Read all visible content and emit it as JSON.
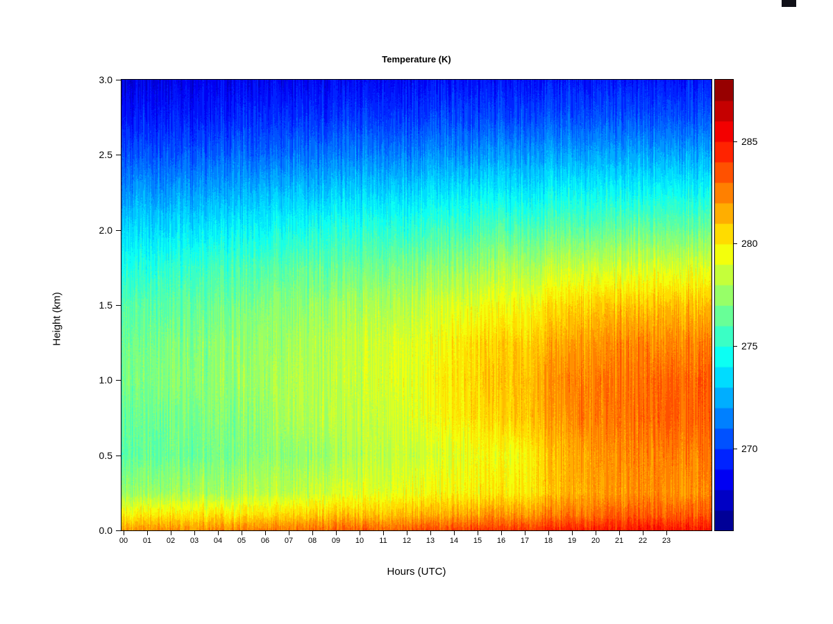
{
  "window": {
    "artifact_color": "#101018"
  },
  "chart_data": {
    "type": "heatmap",
    "title": "Temperature (K)",
    "xlabel": "Hours (UTC)",
    "ylabel": "Height (km)",
    "xlim": [
      0,
      24
    ],
    "ylim": [
      0,
      3
    ],
    "grid": false,
    "legend_position": "colorbar-right",
    "x_tick_labels": [
      "00",
      "01",
      "02",
      "03",
      "04",
      "05",
      "06",
      "07",
      "08",
      "09",
      "10",
      "11",
      "12",
      "13",
      "14",
      "15",
      "16",
      "17",
      "18",
      "19",
      "20",
      "21",
      "22",
      "23"
    ],
    "y_tick_values": [
      0.0,
      0.5,
      1.0,
      1.5,
      2.0,
      2.5,
      3.0
    ],
    "y_tick_labels": [
      "0.0",
      "0.5",
      "1.0",
      "1.5",
      "2.0",
      "2.5",
      "3.0"
    ],
    "heights_km": [
      0.0,
      0.1,
      0.25,
      0.5,
      0.75,
      1.0,
      1.25,
      1.5,
      1.75,
      2.0,
      2.25,
      2.5,
      2.75,
      3.0
    ],
    "hours_utc": [
      0,
      1,
      2,
      3,
      4,
      5,
      6,
      7,
      8,
      9,
      10,
      11,
      12,
      13,
      14,
      15,
      16,
      17,
      18,
      19,
      20,
      21,
      22,
      23
    ],
    "hour_profiles_K": [
      [
        282.0,
        280.0,
        277.6,
        276.4,
        276.5,
        276.8,
        276.5,
        276.0,
        275.0,
        273.5,
        272.0,
        270.5,
        269.2,
        268.2
      ],
      [
        282.0,
        280.0,
        277.5,
        276.3,
        276.4,
        276.8,
        276.5,
        276.0,
        275.0,
        273.5,
        272.0,
        270.5,
        269.2,
        268.2
      ],
      [
        282.2,
        280.0,
        277.6,
        276.4,
        276.6,
        277.0,
        276.8,
        276.2,
        275.2,
        273.6,
        272.0,
        270.5,
        269.2,
        268.2
      ],
      [
        282.2,
        280.2,
        277.8,
        276.6,
        276.8,
        277.2,
        277.0,
        276.4,
        275.4,
        273.8,
        272.2,
        270.6,
        269.3,
        268.3
      ],
      [
        282.4,
        280.2,
        277.8,
        276.8,
        277.0,
        277.4,
        277.2,
        276.6,
        275.6,
        274.0,
        272.4,
        270.8,
        269.4,
        268.4
      ],
      [
        282.4,
        280.4,
        278.0,
        277.0,
        277.2,
        277.6,
        277.4,
        276.8,
        275.8,
        274.2,
        272.6,
        271.0,
        269.5,
        268.5
      ],
      [
        282.6,
        280.4,
        278.2,
        277.2,
        277.5,
        277.8,
        277.6,
        277.0,
        276.0,
        274.4,
        272.8,
        271.0,
        269.6,
        268.5
      ],
      [
        282.8,
        280.6,
        278.4,
        277.4,
        277.8,
        278.0,
        277.8,
        277.2,
        276.2,
        274.6,
        273.0,
        271.2,
        269.7,
        268.6
      ],
      [
        283.0,
        280.8,
        278.6,
        277.6,
        278.0,
        278.2,
        278.0,
        277.4,
        276.4,
        274.8,
        273.0,
        271.2,
        269.8,
        268.6
      ],
      [
        283.0,
        281.0,
        278.8,
        277.8,
        278.2,
        278.4,
        278.2,
        277.6,
        276.5,
        274.9,
        273.2,
        271.4,
        269.8,
        268.7
      ],
      [
        283.2,
        281.0,
        279.0,
        278.0,
        278.4,
        278.6,
        278.4,
        277.8,
        276.6,
        275.0,
        273.2,
        271.4,
        269.9,
        268.7
      ],
      [
        283.2,
        281.2,
        279.2,
        278.4,
        278.8,
        279.0,
        278.8,
        278.0,
        276.8,
        275.2,
        273.4,
        271.6,
        270.0,
        268.8
      ],
      [
        283.4,
        281.4,
        279.4,
        278.6,
        279.0,
        279.2,
        279.0,
        278.2,
        277.0,
        275.3,
        273.5,
        271.6,
        270.0,
        268.8
      ],
      [
        283.6,
        281.6,
        279.6,
        278.8,
        279.4,
        279.6,
        279.4,
        278.6,
        277.2,
        275.5,
        273.6,
        271.8,
        270.1,
        268.9
      ],
      [
        283.8,
        281.8,
        279.8,
        279.2,
        280.0,
        280.4,
        280.0,
        279.0,
        277.5,
        275.7,
        273.8,
        271.9,
        270.2,
        269.0
      ],
      [
        284.0,
        282.0,
        280.0,
        279.4,
        280.4,
        280.8,
        280.4,
        279.2,
        277.6,
        275.8,
        273.9,
        272.0,
        270.2,
        269.0
      ],
      [
        284.0,
        282.0,
        280.0,
        279.4,
        280.6,
        281.0,
        280.6,
        279.4,
        277.8,
        275.9,
        274.0,
        272.0,
        270.3,
        269.0
      ],
      [
        284.2,
        282.2,
        280.2,
        279.8,
        281.0,
        281.2,
        280.8,
        279.6,
        278.0,
        276.0,
        274.0,
        272.1,
        270.3,
        269.1
      ],
      [
        284.4,
        282.6,
        281.0,
        281.0,
        281.8,
        282.0,
        281.4,
        280.2,
        278.3,
        276.2,
        274.2,
        272.2,
        270.4,
        269.1
      ],
      [
        284.6,
        282.8,
        281.4,
        281.6,
        282.2,
        282.4,
        281.8,
        280.6,
        278.5,
        276.3,
        274.2,
        272.2,
        270.4,
        269.1
      ],
      [
        284.8,
        283.0,
        281.8,
        282.0,
        282.6,
        282.6,
        282.0,
        280.8,
        278.6,
        276.4,
        274.3,
        272.3,
        270.4,
        269.2
      ],
      [
        284.8,
        283.2,
        282.0,
        282.2,
        282.8,
        282.8,
        282.2,
        281.0,
        278.8,
        276.5,
        274.4,
        272.3,
        270.5,
        269.2
      ],
      [
        285.0,
        283.4,
        282.2,
        282.4,
        283.0,
        283.0,
        282.4,
        281.0,
        278.8,
        276.5,
        274.4,
        272.4,
        270.5,
        269.2
      ],
      [
        285.0,
        283.4,
        282.2,
        282.6,
        283.2,
        283.2,
        282.4,
        281.2,
        279.0,
        276.6,
        274.5,
        272.4,
        270.5,
        269.2
      ]
    ],
    "colorbar": {
      "min": 266,
      "max": 288,
      "band_K": 1,
      "tick_values": [
        270,
        275,
        280,
        285
      ],
      "colormap": "jet"
    }
  }
}
